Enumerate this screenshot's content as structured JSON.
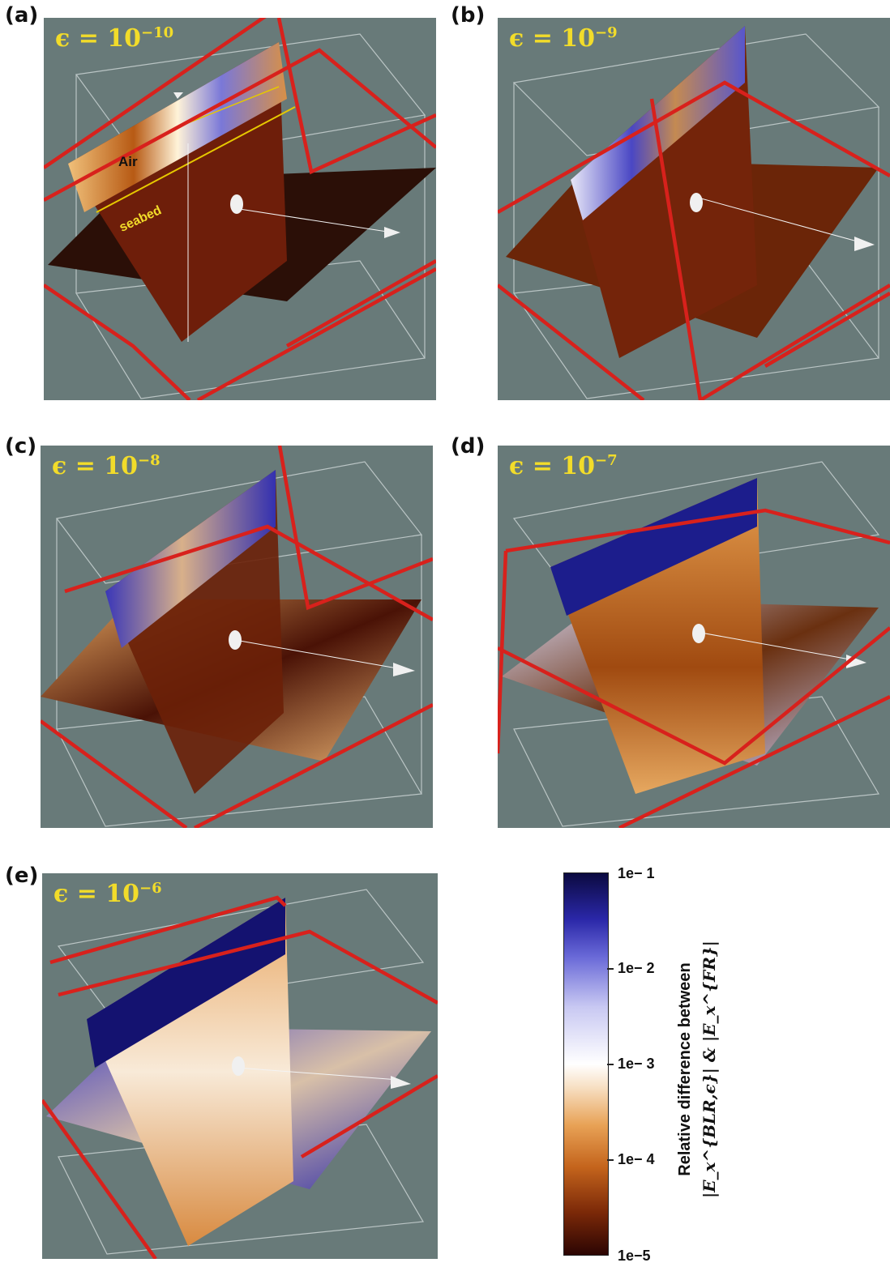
{
  "panels": [
    {
      "id": "a",
      "label": "(a)",
      "eps_prefix": "ϵ = 10",
      "eps_exp": "−10",
      "air_label": "Air",
      "seabed_label": "seabed"
    },
    {
      "id": "b",
      "label": "(b)",
      "eps_prefix": "ϵ = 10",
      "eps_exp": "−9"
    },
    {
      "id": "c",
      "label": "(c)",
      "eps_prefix": "ϵ = 10",
      "eps_exp": "−8"
    },
    {
      "id": "d",
      "label": "(d)",
      "eps_prefix": "ϵ = 10",
      "eps_exp": "−7"
    },
    {
      "id": "e",
      "label": "(e)",
      "eps_prefix": "ϵ = 10",
      "eps_exp": "−6"
    }
  ],
  "colorbar": {
    "ticks": [
      "1e− 1",
      "1e− 2",
      "1e− 3",
      "1e− 4",
      "1e−5"
    ],
    "title_line1": "Relative difference between",
    "title_line2": "|E_x^{BLR,ϵ}| & |E_x^{FR}|"
  },
  "colors": {
    "background_gray": "#687a79",
    "frame_red": "#d8211c",
    "eps_yellow": "#f2dc2a",
    "low_diff": "#2c0503",
    "high_diff": "#0b0a40"
  }
}
